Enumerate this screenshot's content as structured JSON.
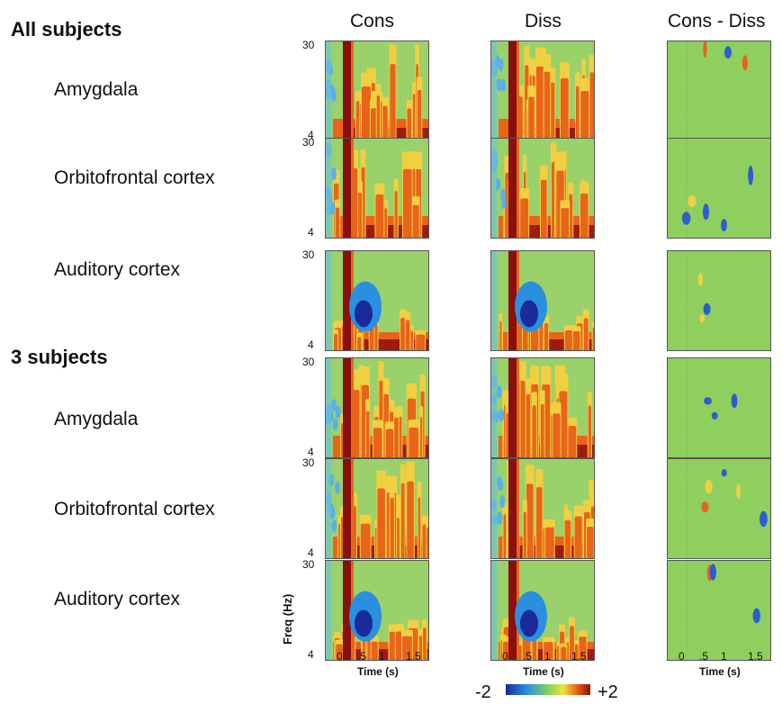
{
  "columns": [
    "Cons",
    "Diss",
    "Cons - Diss"
  ],
  "groups": [
    {
      "title": "All subjects",
      "rows": [
        "Amygdala",
        "Orbitofrontal cortex",
        "Auditory cortex"
      ]
    },
    {
      "title": "3 subjects",
      "rows": [
        "Amygdala",
        "Orbitofrontal cortex",
        "Auditory cortex"
      ]
    }
  ],
  "freq_axis": {
    "label": "Freq (Hz)",
    "top": "30",
    "bottom": "4"
  },
  "time_axis": {
    "label": "Time (s)",
    "ticks": [
      "0",
      ".5",
      "1",
      "1.5"
    ]
  },
  "colorbar": {
    "min": "-2",
    "max": "+2",
    "colors": [
      "#1a2a9a",
      "#2b8fe0",
      "#7fd65a",
      "#f0e040",
      "#e8641a",
      "#8a0f0f"
    ]
  }
}
